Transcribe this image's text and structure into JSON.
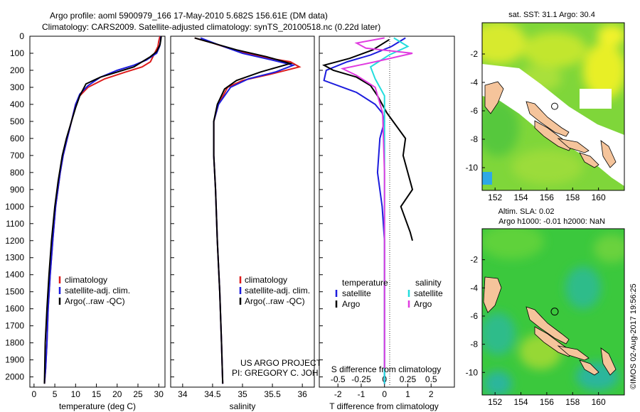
{
  "header": {
    "line1": "Argo profile: aoml 5900979_166 17-May-2010 5.682S 156.61E (DM data)",
    "line2": "Climatology: CARS2009. Satellite-adjusted climatology: synTS_20100518.nc (0.22d later)"
  },
  "colors": {
    "climatology": "#dd1c1c",
    "satellite": "#1c1cdd",
    "argo": "#000000",
    "sat_salinity": "#22dddd",
    "argo_salinity": "#e03ce0"
  },
  "chart_data": [
    {
      "type": "line",
      "id": "temperature",
      "xlabel": "temperature (deg C)",
      "ylabel": "",
      "xlim": [
        -1,
        31.5
      ],
      "ylim": [
        0,
        2060
      ],
      "xticks": [
        0,
        5,
        10,
        15,
        20,
        25,
        30
      ],
      "yticks": [
        0,
        100,
        200,
        300,
        400,
        500,
        600,
        700,
        800,
        900,
        1000,
        1100,
        1200,
        1300,
        1400,
        1500,
        1600,
        1700,
        1800,
        1900,
        2000
      ],
      "legend": [
        "climatology",
        "satellite-adj. clim.",
        "Argo(..raw -QC)"
      ],
      "series": [
        {
          "name": "climatology",
          "color": "red",
          "x": [
            30.3,
            30,
            29.8,
            29,
            28,
            26,
            22,
            17,
            13,
            11,
            10,
            9,
            8,
            7,
            6.3,
            5.2,
            4.5,
            3.9,
            3.4,
            3.1,
            2.8,
            2.5
          ],
          "y": [
            0,
            30,
            60,
            100,
            150,
            180,
            210,
            250,
            300,
            350,
            400,
            500,
            600,
            700,
            800,
            1000,
            1200,
            1400,
            1600,
            1800,
            1950,
            2040
          ]
        },
        {
          "name": "satellite-adj. clim.",
          "color": "blue",
          "x": [
            30.5,
            30.4,
            30.2,
            29.5,
            27,
            24,
            20,
            16,
            13,
            11,
            10,
            9,
            8,
            7,
            6.3,
            5.2,
            4.5,
            3.9,
            3.4,
            3.1,
            2.8,
            2.5
          ],
          "y": [
            0,
            30,
            60,
            100,
            140,
            170,
            200,
            240,
            290,
            340,
            400,
            500,
            600,
            700,
            800,
            1000,
            1200,
            1400,
            1600,
            1800,
            1950,
            2040
          ]
        },
        {
          "name": "Argo(..raw -QC)",
          "color": "black",
          "x": [
            30.6,
            30.5,
            30.3,
            29.5,
            28,
            26,
            24,
            20,
            16,
            12.5,
            11,
            10,
            9,
            7.8,
            6.8,
            5.8,
            5,
            4.2,
            3.6,
            3.1,
            2.7,
            2.5
          ],
          "y": [
            0,
            20,
            50,
            90,
            120,
            150,
            180,
            210,
            240,
            280,
            350,
            420,
            500,
            600,
            700,
            850,
            1000,
            1200,
            1400,
            1600,
            1800,
            2040
          ]
        }
      ]
    },
    {
      "type": "line",
      "id": "salinity",
      "xlabel": "salinity",
      "ylabel": "",
      "xlim": [
        33.8,
        36.2
      ],
      "ylim": [
        0,
        2060
      ],
      "xticks": [
        34,
        34.5,
        35,
        35.5,
        36
      ],
      "legend": [
        "climatology",
        "satellite-adj. clim.",
        "Argo(..raw -QC)"
      ],
      "series": [
        {
          "name": "climatology",
          "color": "red",
          "x": [
            34.2,
            34.5,
            34.85,
            35.3,
            35.8,
            35.95,
            35.5,
            35.0,
            34.75,
            34.6,
            34.52,
            34.52,
            34.55,
            34.58,
            34.62,
            34.65,
            34.67
          ],
          "y": [
            10,
            40,
            80,
            120,
            150,
            180,
            220,
            260,
            300,
            400,
            500,
            700,
            900,
            1200,
            1500,
            1800,
            2040
          ]
        },
        {
          "name": "satellite-adj. clim.",
          "color": "blue",
          "x": [
            34.3,
            34.6,
            35.0,
            35.5,
            35.85,
            35.55,
            35.1,
            34.8,
            34.6,
            34.52,
            34.52,
            34.55,
            34.58,
            34.62,
            34.65,
            34.67
          ],
          "y": [
            10,
            50,
            100,
            140,
            170,
            210,
            250,
            300,
            400,
            500,
            700,
            900,
            1200,
            1500,
            1800,
            2040
          ]
        },
        {
          "name": "Argo(..raw -QC)",
          "color": "black",
          "x": [
            34.2,
            34.5,
            34.9,
            35.4,
            35.8,
            35.3,
            34.9,
            34.7,
            34.58,
            34.52,
            34.52,
            34.55,
            34.58,
            34.62,
            34.65,
            34.67
          ],
          "y": [
            10,
            40,
            80,
            120,
            160,
            210,
            260,
            310,
            400,
            500,
            700,
            900,
            1200,
            1500,
            1800,
            2040
          ]
        }
      ]
    },
    {
      "type": "line",
      "id": "difference",
      "xlabel": "T difference from climatology",
      "x2label": "S difference from climatology",
      "xlim": [
        -2.8,
        3.0
      ],
      "ylim": [
        0,
        2060
      ],
      "xticks": [
        -2,
        -1,
        0,
        1,
        2
      ],
      "x2ticks": [
        -0.5,
        -0.25,
        0,
        0.25,
        0.5
      ],
      "x2lim": [
        -0.7,
        0.75
      ],
      "legend_left_title": "temperature",
      "legend_right_title": "salinity",
      "legend": [
        "satellite",
        "Argo",
        "satellite",
        "Argo"
      ],
      "t_series": [
        {
          "name": "satellite",
          "color": "blue",
          "x": [
            0.9,
            0.3,
            -0.6,
            -1.6,
            -2.5,
            -2.6,
            -1.2,
            -0.4,
            -0.1,
            0,
            -0.2,
            -0.3,
            -0.1,
            0,
            0,
            0,
            0,
            0
          ],
          "y": [
            10,
            60,
            110,
            150,
            200,
            260,
            330,
            400,
            450,
            500,
            600,
            800,
            1000,
            1200,
            1500,
            1700,
            1900,
            2040
          ]
        },
        {
          "name": "Argo",
          "color": "black",
          "x": [
            0.2,
            -0.5,
            -1.5,
            -2.6,
            -2.2,
            -1.2,
            -0.6,
            -0.3,
            0.1,
            0.9,
            0.8,
            1.2,
            0.7,
            1.1,
            1.2
          ],
          "y": [
            20,
            80,
            130,
            170,
            200,
            240,
            290,
            350,
            450,
            600,
            700,
            900,
            1000,
            1150,
            1200
          ]
        }
      ],
      "s_series": [
        {
          "name": "satellite",
          "color": "cyan",
          "x": [
            0.1,
            0.25,
            0.05,
            -0.15,
            -0.1,
            0,
            0,
            0,
            0,
            0
          ],
          "y": [
            10,
            60,
            110,
            180,
            250,
            350,
            700,
            1200,
            1700,
            2040
          ]
        },
        {
          "name": "Argo",
          "color": "magenta",
          "x": [
            0.0,
            -0.3,
            -0.2,
            0.3,
            -0.1,
            -0.45,
            -0.3,
            -0.1,
            -0.02,
            0,
            0,
            0
          ],
          "y": [
            10,
            40,
            70,
            100,
            150,
            190,
            230,
            300,
            450,
            800,
            1400,
            1950
          ]
        }
      ]
    },
    {
      "type": "heatmap",
      "id": "sst_map",
      "title": "sat. SST: 31.1  Argo: 30.4",
      "xticks": [
        152,
        154,
        156,
        158,
        160
      ],
      "yticks": [
        -2,
        -4,
        -6,
        -8,
        -10
      ],
      "xlim": [
        151,
        162
      ],
      "ylim": [
        -11.6,
        0.2
      ],
      "argo_position": {
        "lon": 156.61,
        "lat": -5.682
      }
    },
    {
      "type": "heatmap",
      "id": "sla_map",
      "title": "Altim. SLA: 0.02",
      "subtitle": "Argo h1000: -0.01  h2000: NaN",
      "xticks": [
        152,
        154,
        156,
        158,
        160
      ],
      "yticks": [
        -2,
        -4,
        -6,
        -8,
        -10
      ],
      "xlim": [
        151,
        162
      ],
      "ylim": [
        -11.6,
        0.2
      ],
      "argo_position": {
        "lon": 156.61,
        "lat": -5.682
      }
    }
  ],
  "credits": {
    "project": "US ARGO PROJECT",
    "pi": "PI: GREGORY C. JOHNSON",
    "stamp": "©IMOS 02-Aug-2017 19:56:25"
  }
}
